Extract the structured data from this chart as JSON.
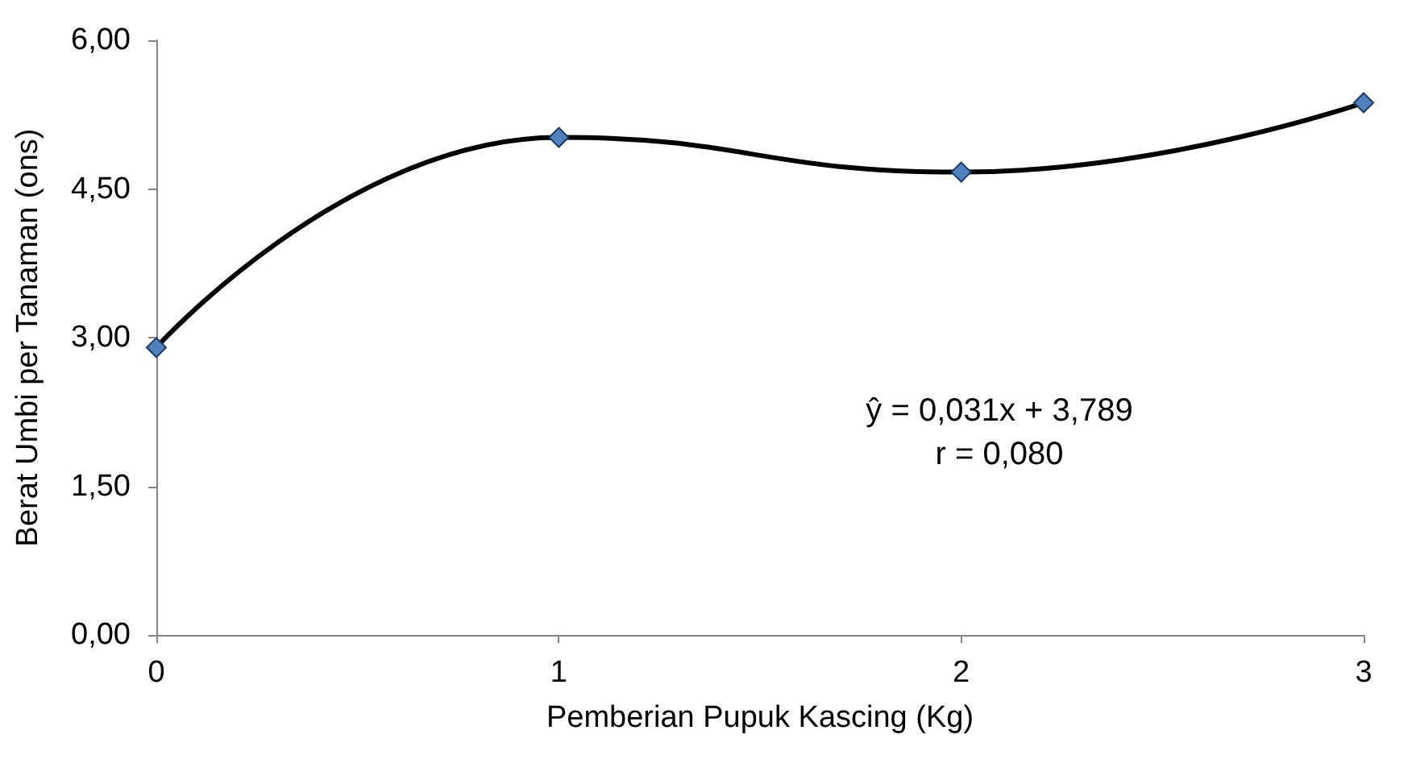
{
  "chart_data": {
    "type": "line",
    "xlabel": "Pemberian Pupuk Kascing (Kg)",
    "ylabel": "Berat Umbi per Tanaman (ons)",
    "x": [
      0,
      1,
      2,
      3
    ],
    "series": [
      {
        "color": "#000000",
        "values": [
          2.9,
          5.02,
          4.67,
          5.37
        ]
      }
    ],
    "xlim": [
      0,
      3
    ],
    "xticks": [
      0,
      1,
      2,
      3
    ],
    "ylim": [
      0,
      6
    ],
    "yticks": [
      {
        "value": 0,
        "label": "0,00"
      },
      {
        "value": 1.5,
        "label": "1,50"
      },
      {
        "value": 3,
        "label": "3,00"
      },
      {
        "value": 4.5,
        "label": "4,50"
      },
      {
        "value": 6,
        "label": "6,00"
      }
    ],
    "marker": "diamond",
    "line_style": "solid",
    "grid": false,
    "annotations": [
      "ŷ = 0,031x + 3,789",
      "r = 0,080"
    ]
  }
}
